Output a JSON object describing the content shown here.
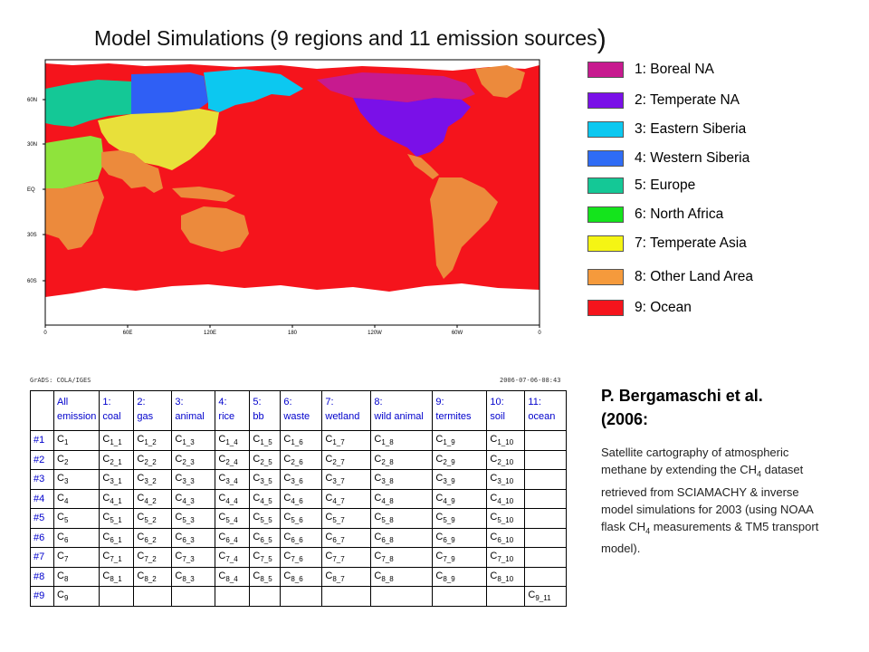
{
  "title": {
    "text": "Model Simulations (9 regions and 11 emission sources",
    "close_paren": ")"
  },
  "map": {
    "lat_ticks": [
      "60N",
      "30N",
      "EQ",
      "30S",
      "60S"
    ],
    "lon_ticks": [
      "0",
      "60E",
      "120E",
      "180",
      "120W",
      "60W",
      "0"
    ],
    "region_colors": {
      "boreal_na": "#c71a8f",
      "temperate_na": "#7a10e8",
      "eastern_siberia": "#0cc8f0",
      "western_siberia": "#2f5ff5",
      "europe": "#14c896",
      "north_africa": "#8fe33c",
      "temperate_asia": "#e8e03a",
      "other_land": "#ec8a3c",
      "ocean": "#f5141c",
      "ice": "#ffffff"
    }
  },
  "legend": [
    {
      "label": "1: Boreal NA",
      "color": "#c71a8f"
    },
    {
      "label": "2: Temperate NA",
      "color": "#7a10e8"
    },
    {
      "label": "3: Eastern Siberia",
      "color": "#0cc8f0"
    },
    {
      "label": "4: Western Siberia",
      "color": "#2f6cf5"
    },
    {
      "label": "5: Europe",
      "color": "#14c896"
    },
    {
      "label": "6: North Africa",
      "color": "#14e41c"
    },
    {
      "label": "7: Temperate Asia",
      "color": "#f5f514"
    },
    {
      "label": "8: Other Land Area",
      "color": "#f59a3c"
    },
    {
      "label": "9: Ocean",
      "color": "#f5141c"
    }
  ],
  "grads": {
    "left": "GrADS: COLA/IGES",
    "right": "2006-07-06-08:43"
  },
  "table": {
    "headers": [
      [
        "All",
        "emission"
      ],
      [
        "1:",
        "coal"
      ],
      [
        "2:",
        "gas"
      ],
      [
        "3:",
        "animal"
      ],
      [
        "4:",
        "rice"
      ],
      [
        "5:",
        "bb"
      ],
      [
        "6:",
        "waste"
      ],
      [
        "7:",
        "wetland"
      ],
      [
        "8:",
        "wild animal"
      ],
      [
        "9:",
        "termites"
      ],
      [
        "10:",
        "soil"
      ],
      [
        "11:",
        "ocean"
      ]
    ],
    "rows": [
      {
        "label": "#1",
        "cells": [
          [
            "C",
            "1"
          ],
          [
            "C",
            "1_1"
          ],
          [
            "C",
            "1_2"
          ],
          [
            "C",
            "1_3"
          ],
          [
            "C",
            "1_4"
          ],
          [
            "C",
            "1_5"
          ],
          [
            "C",
            "1_6"
          ],
          [
            "C",
            "1_7"
          ],
          [
            "C",
            "1_8"
          ],
          [
            "C",
            "1_9"
          ],
          [
            "C",
            "1_10"
          ],
          [
            "",
            ""
          ]
        ]
      },
      {
        "label": "#2",
        "cells": [
          [
            "C",
            "2"
          ],
          [
            "C",
            "2_1"
          ],
          [
            "C",
            "2_2"
          ],
          [
            "C",
            "2_3"
          ],
          [
            "C",
            "2_4"
          ],
          [
            "C",
            "2_5"
          ],
          [
            "C",
            "2_6"
          ],
          [
            "C",
            "2_7"
          ],
          [
            "C",
            "2_8"
          ],
          [
            "C",
            "2_9"
          ],
          [
            "C",
            "2_10"
          ],
          [
            "",
            ""
          ]
        ]
      },
      {
        "label": "#3",
        "cells": [
          [
            "C",
            "3"
          ],
          [
            "C",
            "3_1"
          ],
          [
            "C",
            "3_2"
          ],
          [
            "C",
            "3_3"
          ],
          [
            "C",
            "3_4"
          ],
          [
            "C",
            "3_5"
          ],
          [
            "C",
            "3_6"
          ],
          [
            "C",
            "3_7"
          ],
          [
            "C",
            "3_8"
          ],
          [
            "C",
            "3_9"
          ],
          [
            "C",
            "3_10"
          ],
          [
            "",
            ""
          ]
        ]
      },
      {
        "label": "#4",
        "cells": [
          [
            "C",
            "4"
          ],
          [
            "C",
            "4_1"
          ],
          [
            "C",
            "4_2"
          ],
          [
            "C",
            "4_3"
          ],
          [
            "C",
            "4_4"
          ],
          [
            "C",
            "4_5"
          ],
          [
            "C",
            "4_6"
          ],
          [
            "C",
            "4_7"
          ],
          [
            "C",
            "4_8"
          ],
          [
            "C",
            "4_9"
          ],
          [
            "C",
            "4_10"
          ],
          [
            "",
            ""
          ]
        ]
      },
      {
        "label": "#5",
        "cells": [
          [
            "C",
            "5"
          ],
          [
            "C",
            "5_1"
          ],
          [
            "C",
            "5_2"
          ],
          [
            "C",
            "5_3"
          ],
          [
            "C",
            "5_4"
          ],
          [
            "C",
            "5_5"
          ],
          [
            "C",
            "5_6"
          ],
          [
            "C",
            "5_7"
          ],
          [
            "C",
            "5_8"
          ],
          [
            "C",
            "5_9"
          ],
          [
            "C",
            "5_10"
          ],
          [
            "",
            ""
          ]
        ]
      },
      {
        "label": "#6",
        "cells": [
          [
            "C",
            "6"
          ],
          [
            "C",
            "6_1"
          ],
          [
            "C",
            "6_2"
          ],
          [
            "C",
            "6_3"
          ],
          [
            "C",
            "6_4"
          ],
          [
            "C",
            "6_5"
          ],
          [
            "C",
            "6_6"
          ],
          [
            "C",
            "6_7"
          ],
          [
            "C",
            "6_8"
          ],
          [
            "C",
            "6_9"
          ],
          [
            "C",
            "6_10"
          ],
          [
            "",
            ""
          ]
        ]
      },
      {
        "label": "#7",
        "cells": [
          [
            "C",
            "7"
          ],
          [
            "C",
            "7_1"
          ],
          [
            "C",
            "7_2"
          ],
          [
            "C",
            "7_3"
          ],
          [
            "C",
            "7_4"
          ],
          [
            "C",
            "7_5"
          ],
          [
            "C",
            "7_6"
          ],
          [
            "C",
            "7_7"
          ],
          [
            "C",
            "7_8"
          ],
          [
            "C",
            "7_9"
          ],
          [
            "C",
            "7_10"
          ],
          [
            "",
            ""
          ]
        ]
      },
      {
        "label": "#8",
        "cells": [
          [
            "C",
            "8"
          ],
          [
            "C",
            "8_1"
          ],
          [
            "C",
            "8_2"
          ],
          [
            "C",
            "8_3"
          ],
          [
            "C",
            "8_4"
          ],
          [
            "C",
            "8_5"
          ],
          [
            "C",
            "8_6"
          ],
          [
            "C",
            "8_7"
          ],
          [
            "C",
            "8_8"
          ],
          [
            "C",
            "8_9"
          ],
          [
            "C",
            "8_10"
          ],
          [
            "",
            ""
          ]
        ]
      },
      {
        "label": "#9",
        "cells": [
          [
            "C",
            "9"
          ],
          [
            "",
            ""
          ],
          [
            "",
            ""
          ],
          [
            "",
            ""
          ],
          [
            "",
            ""
          ],
          [
            "",
            ""
          ],
          [
            "",
            ""
          ],
          [
            "",
            ""
          ],
          [
            "",
            ""
          ],
          [
            "",
            ""
          ],
          [
            "",
            ""
          ],
          [
            "C",
            "9_11"
          ]
        ]
      }
    ]
  },
  "reference": {
    "title_line1": "P. Bergamaschi et al.",
    "title_line2": "(2006:",
    "body_parts": [
      {
        "t": "Satellite cartography of atmospheric methane by extending the  CH"
      },
      {
        "sub": "4"
      },
      {
        "t": " dataset retrieved from SCIAMACHY & inverse model simulations for 2003 (using NOAA flask CH"
      },
      {
        "sub": "4"
      },
      {
        "t": " measurements  & TM5 transport model)."
      }
    ]
  }
}
